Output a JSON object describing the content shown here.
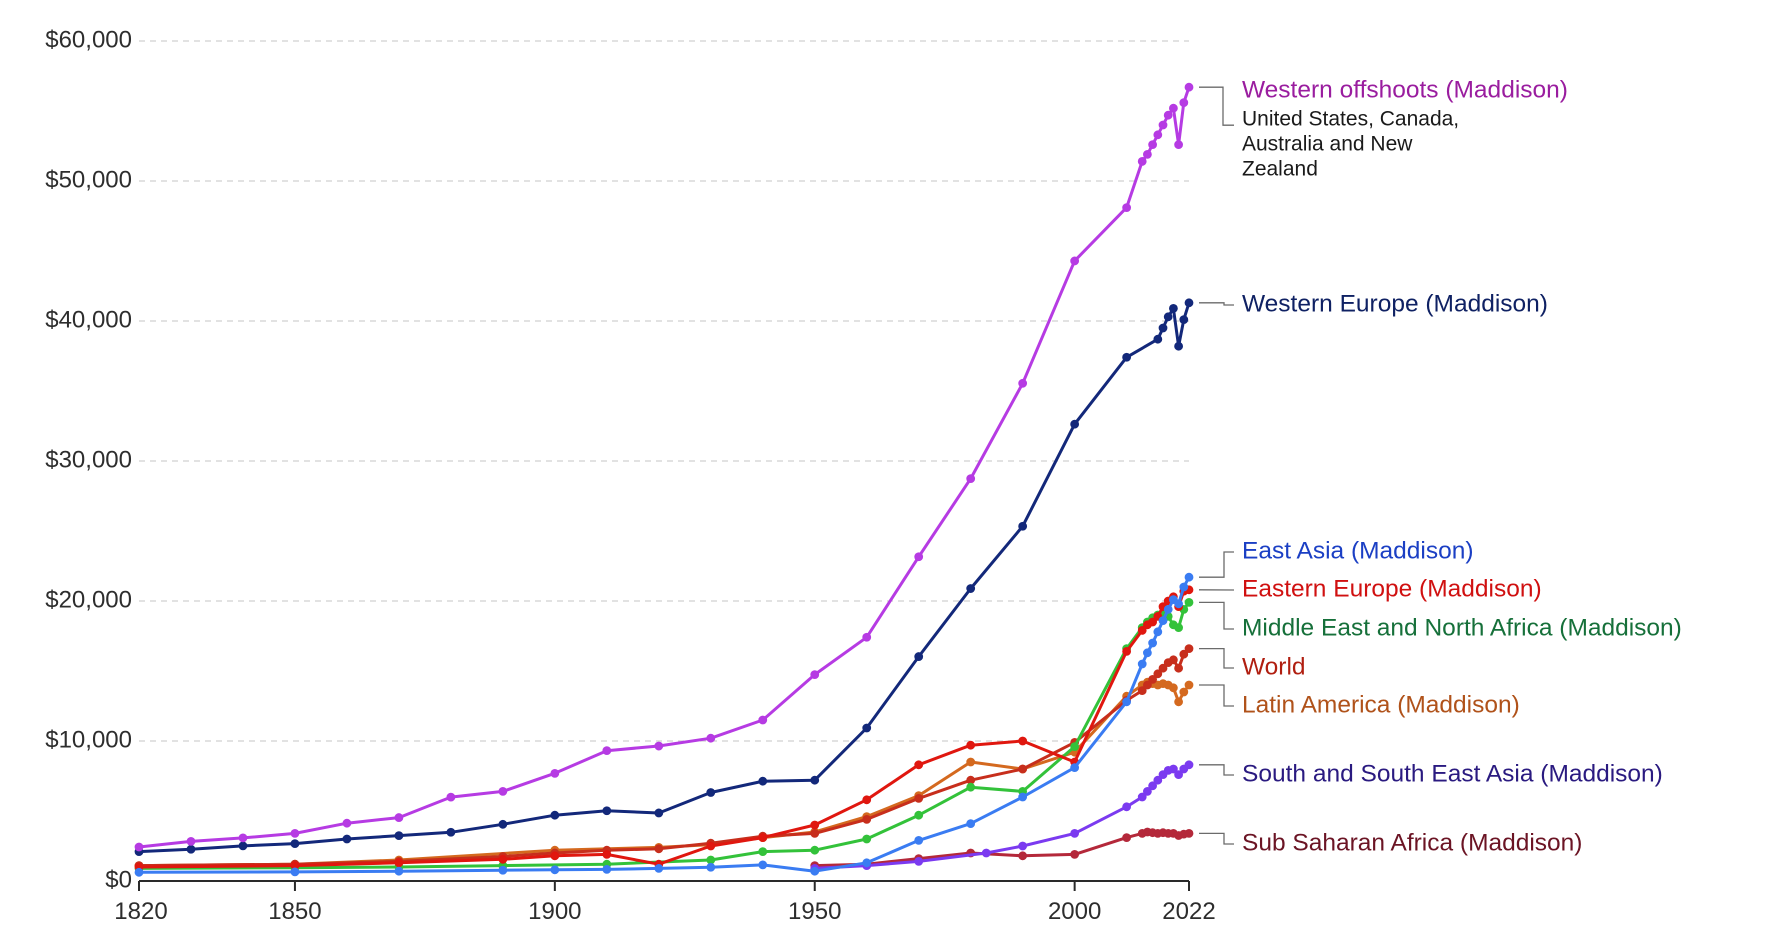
{
  "chart_data": {
    "type": "line",
    "title": "",
    "xlabel": "",
    "ylabel": "",
    "xlim": [
      1820,
      2022
    ],
    "ylim": [
      0,
      60000
    ],
    "grid": true,
    "legend_placement": "right (inline labels at line ends)",
    "x_ticks": [
      1820,
      1850,
      1900,
      1950,
      2000,
      2022
    ],
    "x_tick_labels": [
      "1820",
      "1850",
      "1900",
      "1950",
      "2000",
      "2022"
    ],
    "y_ticks": [
      0,
      10000,
      20000,
      30000,
      40000,
      50000,
      60000
    ],
    "y_tick_labels": [
      "$0",
      "$10,000",
      "$20,000",
      "$30,000",
      "$40,000",
      "$50,000",
      "$60,000"
    ],
    "series": [
      {
        "name": "Western offshoots (Maddison)",
        "subtitle": "United States, Canada, Australia and New Zealand",
        "color": "#b63be3",
        "label_color": "#9a1d9f",
        "points": [
          [
            1820,
            2430
          ],
          [
            1830,
            2830
          ],
          [
            1840,
            3080
          ],
          [
            1850,
            3400
          ],
          [
            1860,
            4130
          ],
          [
            1870,
            4530
          ],
          [
            1880,
            5990
          ],
          [
            1890,
            6400
          ],
          [
            1900,
            7690
          ],
          [
            1910,
            9310
          ],
          [
            1920,
            9640
          ],
          [
            1930,
            10200
          ],
          [
            1940,
            11500
          ],
          [
            1950,
            14740
          ],
          [
            1960,
            17410
          ],
          [
            1970,
            23160
          ],
          [
            1980,
            28740
          ],
          [
            1990,
            35550
          ],
          [
            2000,
            44290
          ],
          [
            2010,
            48100
          ],
          [
            2013,
            51400
          ],
          [
            2014,
            51900
          ],
          [
            2015,
            52600
          ],
          [
            2016,
            53300
          ],
          [
            2017,
            54000
          ],
          [
            2018,
            54700
          ],
          [
            2019,
            55200
          ],
          [
            2020,
            52600
          ],
          [
            2021,
            55600
          ],
          [
            2022,
            56700
          ]
        ]
      },
      {
        "name": "Western Europe (Maddison)",
        "color": "#13287a",
        "label_color": "#0f2163",
        "points": [
          [
            1820,
            2100
          ],
          [
            1830,
            2270
          ],
          [
            1840,
            2510
          ],
          [
            1850,
            2670
          ],
          [
            1860,
            3000
          ],
          [
            1870,
            3240
          ],
          [
            1880,
            3480
          ],
          [
            1890,
            4050
          ],
          [
            1900,
            4700
          ],
          [
            1910,
            5020
          ],
          [
            1920,
            4860
          ],
          [
            1930,
            6320
          ],
          [
            1940,
            7130
          ],
          [
            1950,
            7200
          ],
          [
            1960,
            10930
          ],
          [
            1970,
            16030
          ],
          [
            1980,
            20890
          ],
          [
            1990,
            25340
          ],
          [
            2000,
            32630
          ],
          [
            2010,
            37410
          ],
          [
            2016,
            38700
          ],
          [
            2017,
            39500
          ],
          [
            2018,
            40300
          ],
          [
            2019,
            40900
          ],
          [
            2020,
            38200
          ],
          [
            2021,
            40100
          ],
          [
            2022,
            41300
          ]
        ]
      },
      {
        "name": "East Asia (Maddison)",
        "color": "#3a7cf2",
        "label_color": "#1b3fc4",
        "points": [
          [
            1820,
            620
          ],
          [
            1850,
            650
          ],
          [
            1870,
            700
          ],
          [
            1890,
            770
          ],
          [
            1900,
            800
          ],
          [
            1910,
            830
          ],
          [
            1920,
            900
          ],
          [
            1930,
            980
          ],
          [
            1940,
            1150
          ],
          [
            1950,
            700
          ],
          [
            1960,
            1300
          ],
          [
            1970,
            2900
          ],
          [
            1980,
            4100
          ],
          [
            1990,
            6000
          ],
          [
            2000,
            8100
          ],
          [
            2010,
            12800
          ],
          [
            2013,
            15500
          ],
          [
            2014,
            16300
          ],
          [
            2015,
            17000
          ],
          [
            2016,
            17800
          ],
          [
            2017,
            18600
          ],
          [
            2018,
            19400
          ],
          [
            2019,
            20100
          ],
          [
            2020,
            19800
          ],
          [
            2021,
            21000
          ],
          [
            2022,
            21700
          ]
        ]
      },
      {
        "name": "Eastern Europe (Maddison)",
        "color": "#e0170f",
        "label_color": "#d01010",
        "points": [
          [
            1820,
            1000
          ],
          [
            1850,
            1100
          ],
          [
            1870,
            1300
          ],
          [
            1890,
            1550
          ],
          [
            1900,
            1800
          ],
          [
            1910,
            1900
          ],
          [
            1920,
            1200
          ],
          [
            1930,
            2500
          ],
          [
            1940,
            3100
          ],
          [
            1950,
            4000
          ],
          [
            1960,
            5800
          ],
          [
            1970,
            8300
          ],
          [
            1980,
            9700
          ],
          [
            1990,
            10000
          ],
          [
            2000,
            8500
          ],
          [
            2010,
            16400
          ],
          [
            2013,
            17900
          ],
          [
            2014,
            18300
          ],
          [
            2015,
            18500
          ],
          [
            2016,
            18900
          ],
          [
            2017,
            19600
          ],
          [
            2018,
            20000
          ],
          [
            2019,
            20300
          ],
          [
            2020,
            19600
          ],
          [
            2021,
            20700
          ],
          [
            2022,
            20800
          ]
        ]
      },
      {
        "name": "Middle East and North Africa (Maddison)",
        "color": "#33c23a",
        "label_color": "#16703a",
        "points": [
          [
            1820,
            900
          ],
          [
            1850,
            950
          ],
          [
            1870,
            1000
          ],
          [
            1890,
            1100
          ],
          [
            1910,
            1200
          ],
          [
            1930,
            1500
          ],
          [
            1940,
            2100
          ],
          [
            1950,
            2200
          ],
          [
            1960,
            3000
          ],
          [
            1970,
            4700
          ],
          [
            1980,
            6700
          ],
          [
            1990,
            6400
          ],
          [
            2000,
            9600
          ],
          [
            2010,
            16600
          ],
          [
            2013,
            18100
          ],
          [
            2014,
            18500
          ],
          [
            2015,
            18800
          ],
          [
            2016,
            19000
          ],
          [
            2017,
            19100
          ],
          [
            2018,
            18900
          ],
          [
            2019,
            18300
          ],
          [
            2020,
            18100
          ],
          [
            2021,
            19400
          ],
          [
            2022,
            19900
          ]
        ]
      },
      {
        "name": "World",
        "color": "#c72e1c",
        "label_color": "#b01e10",
        "points": [
          [
            1820,
            1100
          ],
          [
            1850,
            1200
          ],
          [
            1870,
            1400
          ],
          [
            1890,
            1750
          ],
          [
            1900,
            2000
          ],
          [
            1910,
            2200
          ],
          [
            1920,
            2300
          ],
          [
            1930,
            2700
          ],
          [
            1940,
            3200
          ],
          [
            1950,
            3400
          ],
          [
            1960,
            4400
          ],
          [
            1970,
            5900
          ],
          [
            1980,
            7200
          ],
          [
            1990,
            8000
          ],
          [
            2000,
            9900
          ],
          [
            2010,
            12900
          ],
          [
            2013,
            13600
          ],
          [
            2014,
            14000
          ],
          [
            2015,
            14400
          ],
          [
            2016,
            14800
          ],
          [
            2017,
            15200
          ],
          [
            2018,
            15600
          ],
          [
            2019,
            15800
          ],
          [
            2020,
            15200
          ],
          [
            2021,
            16200
          ],
          [
            2022,
            16600
          ]
        ]
      },
      {
        "name": "Latin America (Maddison)",
        "color": "#d4691f",
        "label_color": "#b0521a",
        "points": [
          [
            1820,
            1100
          ],
          [
            1850,
            1200
          ],
          [
            1870,
            1500
          ],
          [
            1900,
            2200
          ],
          [
            1920,
            2400
          ],
          [
            1930,
            2600
          ],
          [
            1940,
            3100
          ],
          [
            1950,
            3500
          ],
          [
            1960,
            4600
          ],
          [
            1970,
            6100
          ],
          [
            1980,
            8500
          ],
          [
            1990,
            8000
          ],
          [
            2000,
            9200
          ],
          [
            2010,
            13200
          ],
          [
            2013,
            14000
          ],
          [
            2014,
            14200
          ],
          [
            2015,
            14100
          ],
          [
            2016,
            14000
          ],
          [
            2017,
            14100
          ],
          [
            2018,
            14000
          ],
          [
            2019,
            13800
          ],
          [
            2020,
            12800
          ],
          [
            2021,
            13500
          ],
          [
            2022,
            14000
          ]
        ]
      },
      {
        "name": "South and South East Asia (Maddison)",
        "color": "#7b3af0",
        "label_color": "#2a1a80",
        "points": [
          [
            1950,
            900
          ],
          [
            1960,
            1100
          ],
          [
            1970,
            1400
          ],
          [
            1983,
            2000
          ],
          [
            1990,
            2500
          ],
          [
            2000,
            3400
          ],
          [
            2010,
            5300
          ],
          [
            2013,
            6000
          ],
          [
            2014,
            6400
          ],
          [
            2015,
            6800
          ],
          [
            2016,
            7200
          ],
          [
            2017,
            7600
          ],
          [
            2018,
            7900
          ],
          [
            2019,
            8000
          ],
          [
            2020,
            7600
          ],
          [
            2021,
            8000
          ],
          [
            2022,
            8300
          ]
        ]
      },
      {
        "name": "Sub Saharan Africa (Maddison)",
        "color": "#b4283a",
        "label_color": "#6b1424",
        "points": [
          [
            1950,
            1100
          ],
          [
            1960,
            1200
          ],
          [
            1970,
            1600
          ],
          [
            1980,
            2000
          ],
          [
            1990,
            1800
          ],
          [
            2000,
            1900
          ],
          [
            2010,
            3100
          ],
          [
            2013,
            3400
          ],
          [
            2014,
            3500
          ],
          [
            2015,
            3450
          ],
          [
            2016,
            3400
          ],
          [
            2017,
            3450
          ],
          [
            2018,
            3400
          ],
          [
            2019,
            3400
          ],
          [
            2020,
            3250
          ],
          [
            2021,
            3350
          ],
          [
            2022,
            3400
          ]
        ]
      }
    ]
  }
}
